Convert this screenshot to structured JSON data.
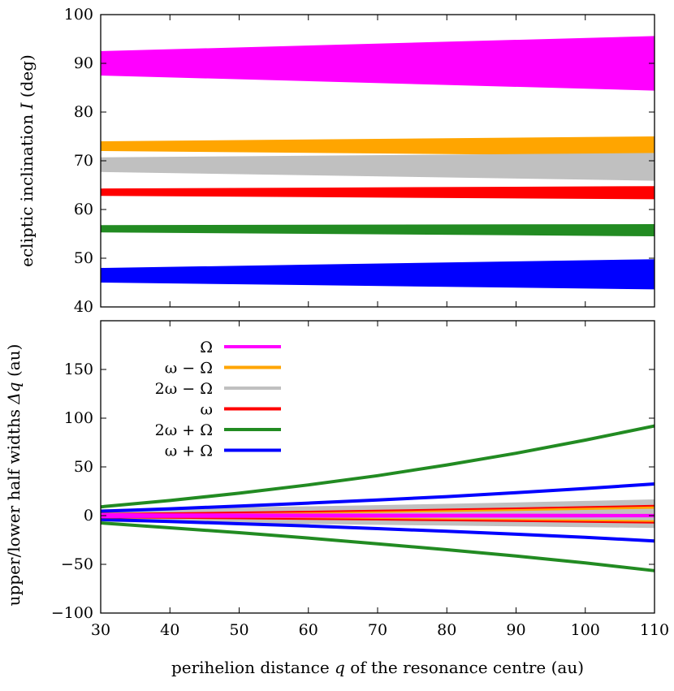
{
  "chart_data": [
    {
      "type": "area",
      "ylabel": "ecliptic inclination I (deg)",
      "xlim": [
        30,
        110
      ],
      "ylim": [
        40,
        100
      ],
      "xticks": [
        30,
        40,
        50,
        60,
        70,
        80,
        90,
        100,
        110
      ],
      "yticks": [
        40,
        50,
        60,
        70,
        80,
        90,
        100
      ],
      "grid": false,
      "series": [
        {
          "name": "Ω",
          "color": "#ff00ff",
          "x": [
            30,
            110
          ],
          "upper": [
            92.5,
            95.6
          ],
          "lower": [
            87.5,
            84.4
          ]
        },
        {
          "name": "ω − Ω",
          "color": "#ffa500",
          "x": [
            30,
            110
          ],
          "upper": [
            74.0,
            75.0
          ],
          "lower": [
            72.0,
            71.0
          ]
        },
        {
          "name": "2ω − Ω",
          "color": "#c0c0c0",
          "x": [
            30,
            110
          ],
          "upper": [
            70.7,
            71.6
          ],
          "lower": [
            67.7,
            65.9
          ]
        },
        {
          "name": "ω",
          "color": "#ff0000",
          "x": [
            30,
            110
          ],
          "upper": [
            64.3,
            64.8
          ],
          "lower": [
            62.8,
            62.1
          ]
        },
        {
          "name": "2ω + Ω",
          "color": "#228b22",
          "x": [
            30,
            110
          ],
          "upper": [
            56.8,
            57.0
          ],
          "lower": [
            55.3,
            54.5
          ]
        },
        {
          "name": "ω + Ω",
          "color": "#0000ff",
          "x": [
            30,
            110
          ],
          "upper": [
            48.0,
            49.8
          ],
          "lower": [
            45.0,
            43.6
          ]
        }
      ]
    },
    {
      "type": "line",
      "xlabel": "perihelion distance q of the resonance centre (au)",
      "ylabel": "upper/lower half widths Δq (au)",
      "xlim": [
        30,
        110
      ],
      "ylim": [
        -100,
        200
      ],
      "xticks": [
        30,
        40,
        50,
        60,
        70,
        80,
        90,
        100,
        110
      ],
      "yticks": [
        -100,
        -50,
        0,
        50,
        100,
        150
      ],
      "legend": "top-left",
      "grid": false,
      "x": [
        30,
        40,
        50,
        60,
        70,
        80,
        90,
        100,
        110
      ],
      "series": [
        {
          "name": "Ω",
          "color": "#ff00ff",
          "upper": [
            0.8,
            0.7,
            0.6,
            0.5,
            0.4,
            0.3,
            0.3,
            0.2,
            0.1
          ],
          "lower": [
            -0.8,
            -0.7,
            -0.6,
            -0.5,
            -0.4,
            -0.3,
            -0.3,
            -0.2,
            -0.1
          ]
        },
        {
          "name": "ω − Ω",
          "color": "#ffa500",
          "upper": [
            1.5,
            2.0,
            2.6,
            3.3,
            4.1,
            5.0,
            6.0,
            7.1,
            8.3
          ],
          "lower": [
            -1.5,
            -2.0,
            -2.5,
            -3.0,
            -3.5,
            -4.1,
            -4.7,
            -5.3,
            -6.0
          ]
        },
        {
          "name": "2ω − Ω",
          "color": "#c0c0c0",
          "upper": [
            5.0,
            5.8,
            6.8,
            7.9,
            9.1,
            10.4,
            11.8,
            13.4,
            15.0
          ],
          "lower": [
            -5.0,
            -5.6,
            -6.3,
            -7.0,
            -7.8,
            -8.6,
            -9.4,
            -10.2,
            -11.0
          ]
        },
        {
          "name": "ω",
          "color": "#ff0000",
          "upper": [
            1.8,
            2.5,
            3.3,
            4.2,
            5.2,
            6.3,
            7.5,
            8.8,
            10.2
          ],
          "lower": [
            -1.8,
            -2.3,
            -2.9,
            -3.5,
            -4.2,
            -4.9,
            -5.7,
            -6.5,
            -7.3
          ]
        },
        {
          "name": "2ω + Ω",
          "color": "#228b22",
          "upper": [
            9.0,
            15.5,
            23.0,
            31.5,
            41.0,
            52.0,
            64.0,
            77.5,
            92.0
          ],
          "lower": [
            -7.5,
            -12.5,
            -17.5,
            -23.0,
            -29.0,
            -35.0,
            -41.5,
            -48.5,
            -56.5
          ]
        },
        {
          "name": "ω + Ω",
          "color": "#0000ff",
          "upper": [
            4.5,
            7.0,
            9.8,
            12.8,
            16.0,
            19.5,
            23.5,
            27.8,
            32.5
          ],
          "lower": [
            -4.0,
            -6.0,
            -8.3,
            -10.7,
            -13.3,
            -16.1,
            -19.1,
            -22.3,
            -26.0
          ]
        }
      ]
    }
  ]
}
